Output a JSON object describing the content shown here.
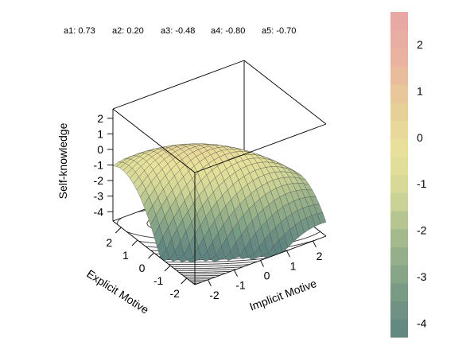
{
  "chart_data": {
    "type": "surface3d",
    "coefficients": [
      {
        "label": "a1: 0.73"
      },
      {
        "label": "a2: 0.20"
      },
      {
        "label": "a3: -0.48"
      },
      {
        "label": "a4: -0.80"
      },
      {
        "label": "a5: -0.70"
      }
    ],
    "x_axis": {
      "label": "Implicit Motive",
      "range": [
        -2.5,
        2.5
      ],
      "ticks": [
        -2,
        -1,
        0,
        1,
        2
      ]
    },
    "y_axis": {
      "label": "Explicit Motive",
      "range": [
        -2.5,
        2.5
      ],
      "ticks": [
        -2,
        -1,
        0,
        1,
        2
      ]
    },
    "z_axis": {
      "label": "Self-knowledge",
      "range": [
        -4.6,
        2.6
      ],
      "ticks": [
        -4,
        -3,
        -2,
        -1,
        0,
        1,
        2
      ]
    },
    "surface_model": {
      "intercept": 0.0,
      "x_coef": 0.2,
      "y_coef": 0.73,
      "xx_coef": -0.48,
      "xy_coef": -0.8,
      "yy_coef": -0.7
    },
    "colorbar": {
      "range": [
        -4.3,
        2.7
      ],
      "ticks": [
        -4,
        -3,
        -2,
        -1,
        0,
        1,
        2
      ],
      "colors": [
        "#5f8480",
        "#7a9c86",
        "#9db58a",
        "#cfd596",
        "#e8e29a",
        "#e7cd98",
        "#e9b3a0",
        "#e8a6a6"
      ]
    },
    "grid": false,
    "legend": "right"
  }
}
